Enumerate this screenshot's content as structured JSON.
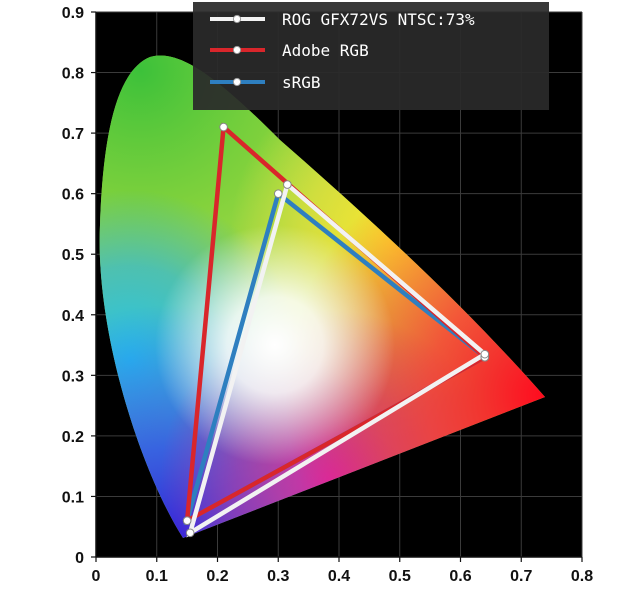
{
  "chart_data": {
    "type": "scatter",
    "title": "",
    "xlabel": "",
    "ylabel": "",
    "xlim": [
      0,
      0.8
    ],
    "ylim": [
      0,
      0.9
    ],
    "x_ticks": [
      "0",
      "0.1",
      "0.2",
      "0.3",
      "0.4",
      "0.5",
      "0.6",
      "0.7",
      "0.8"
    ],
    "y_ticks": [
      "0",
      "0.1",
      "0.2",
      "0.3",
      "0.4",
      "0.5",
      "0.6",
      "0.7",
      "0.8",
      "0.9"
    ],
    "grid": true,
    "background": "#000000",
    "legend_position": "top",
    "series": [
      {
        "name": "ROG GFX72VS NTSC:73%",
        "color": "#f2f2f2",
        "points": [
          {
            "x": 0.64,
            "y": 0.335
          },
          {
            "x": 0.315,
            "y": 0.615
          },
          {
            "x": 0.155,
            "y": 0.04
          }
        ]
      },
      {
        "name": "Adobe RGB",
        "color": "#d9262b",
        "points": [
          {
            "x": 0.64,
            "y": 0.33
          },
          {
            "x": 0.21,
            "y": 0.71
          },
          {
            "x": 0.15,
            "y": 0.06
          }
        ]
      },
      {
        "name": "sRGB",
        "color": "#2e7fc0",
        "points": [
          {
            "x": 0.64,
            "y": 0.33
          },
          {
            "x": 0.3,
            "y": 0.6
          },
          {
            "x": 0.15,
            "y": 0.06
          }
        ]
      }
    ]
  }
}
